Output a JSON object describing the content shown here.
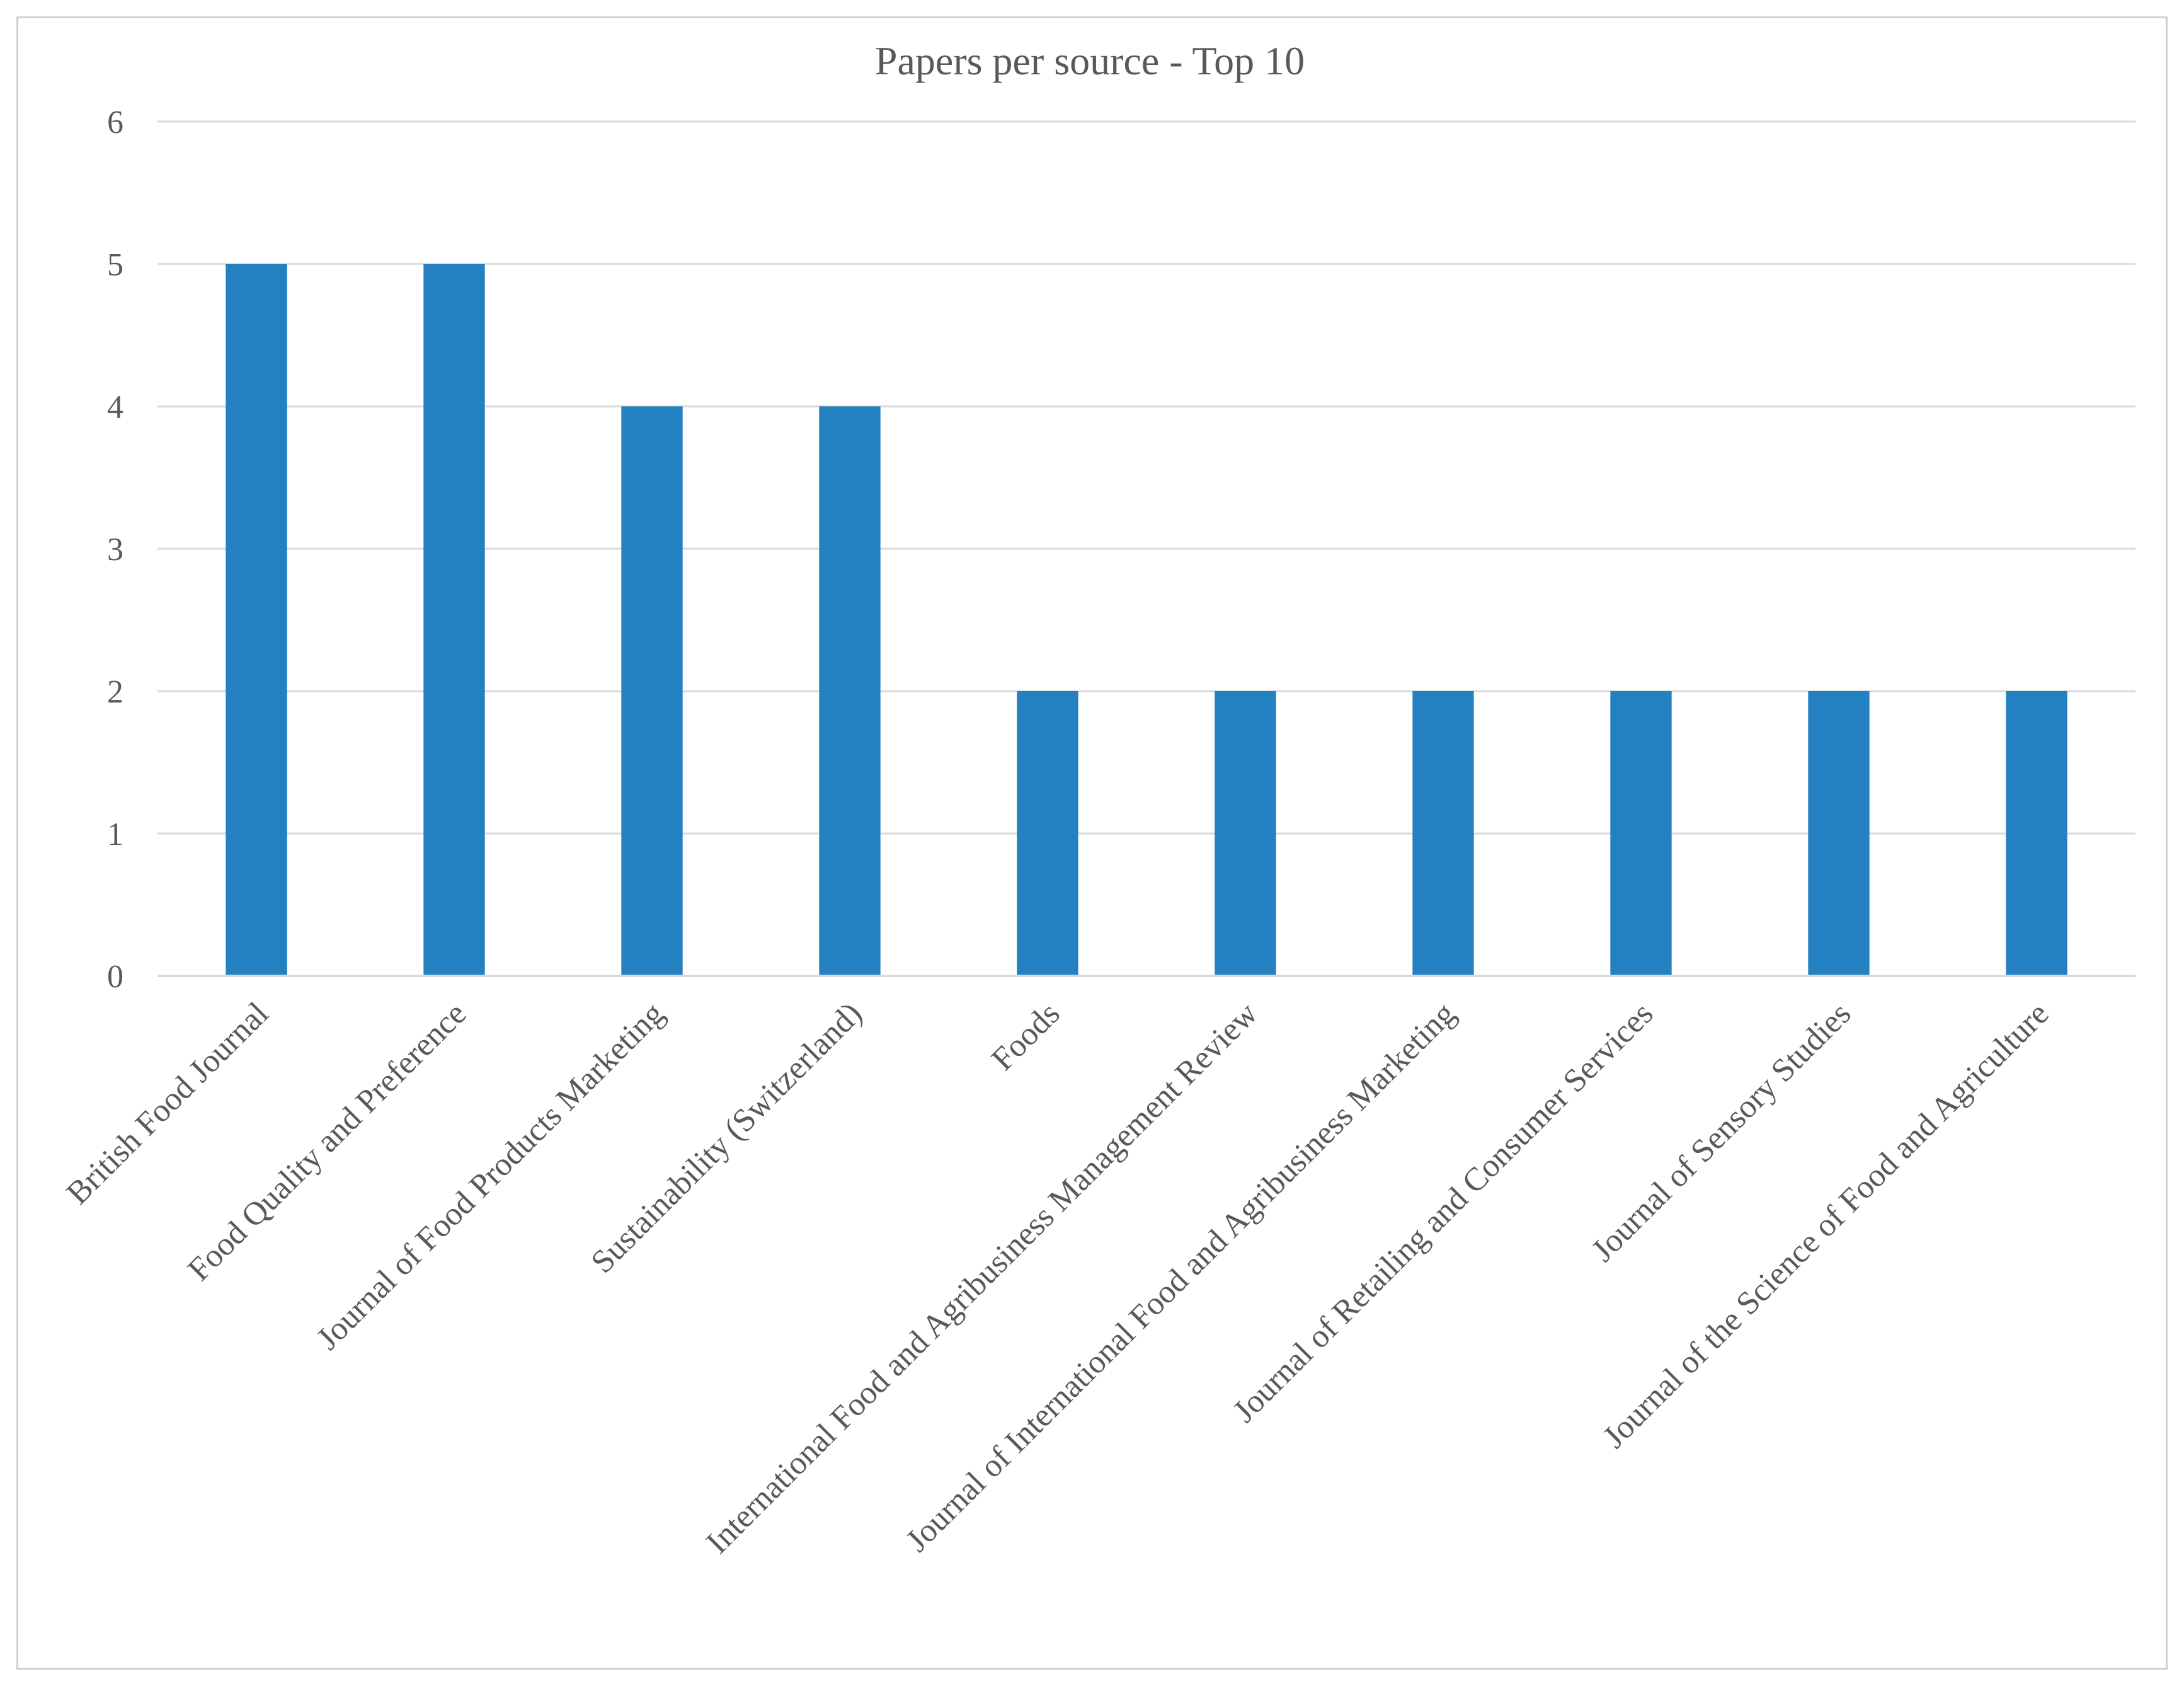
{
  "chart_data": {
    "type": "bar",
    "title": "Papers per source - Top 10",
    "xlabel": "",
    "ylabel": "",
    "ylim": [
      0,
      6
    ],
    "yticks": [
      0,
      1,
      2,
      3,
      4,
      5,
      6
    ],
    "grid": true,
    "legend": "none",
    "bar_color": "#2380c1",
    "gridline_color": "#d9d9d9",
    "categories": [
      "British Food Journal",
      "Food Quality and Preference",
      "Journal of Food Products Marketing",
      "Sustainability (Switzerland)",
      "Foods",
      "International Food and Agribusiness Management Review",
      "Journal of International Food and Agribusiness Marketing",
      "Journal of Retailing and Consumer Services",
      "Journal of Sensory Studies",
      "Journal of the Science of Food and Agriculture"
    ],
    "values": [
      5,
      5,
      4,
      4,
      2,
      2,
      2,
      2,
      2,
      2
    ]
  }
}
